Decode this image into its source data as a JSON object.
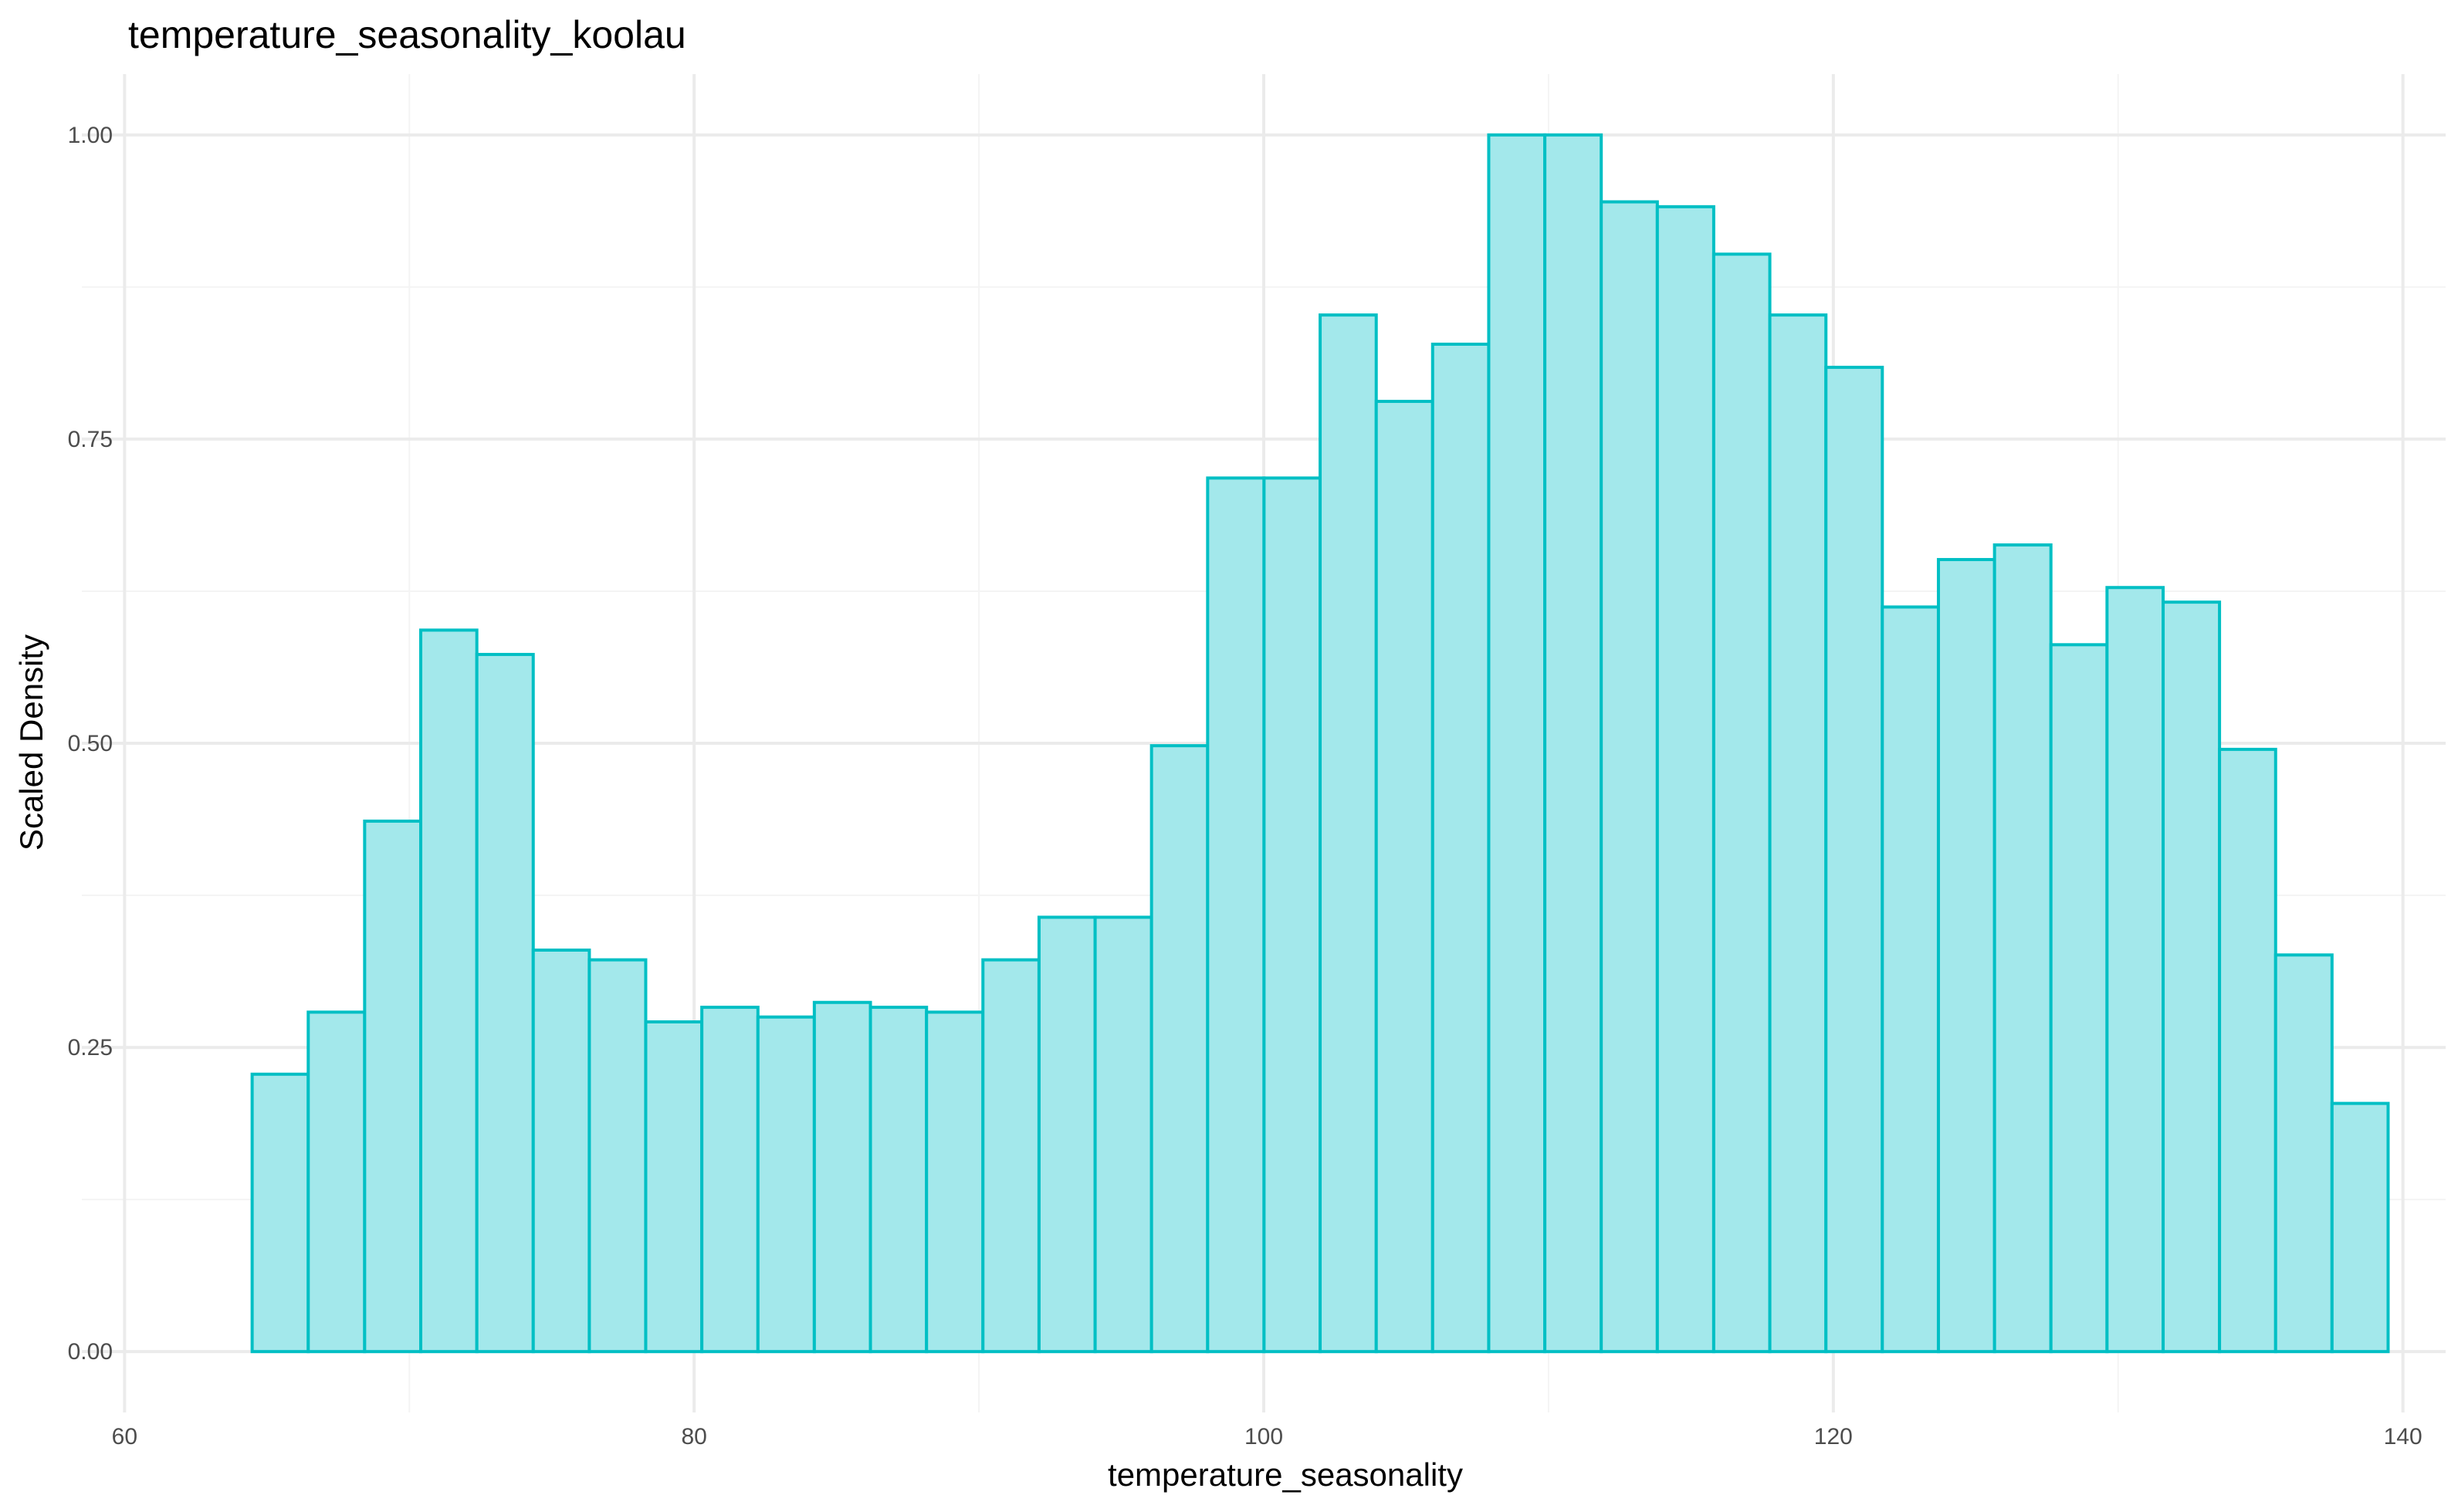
{
  "chart_data": {
    "type": "bar",
    "title": "temperature_seasonality_koolau",
    "xlabel": "temperature_seasonality",
    "ylabel": "Scaled Density",
    "xlim": [
      58.5,
      141.5
    ],
    "ylim": [
      -0.05,
      1.05
    ],
    "x_ticks": [
      60,
      80,
      100,
      120,
      140
    ],
    "y_ticks": [
      0.0,
      0.25,
      0.5,
      0.75,
      1.0
    ],
    "x_tick_labels": [
      "60",
      "80",
      "100",
      "120",
      "140"
    ],
    "y_tick_labels": [
      "0.00",
      "0.25",
      "0.50",
      "0.75",
      "1.00"
    ],
    "grid": true,
    "colors": {
      "fill": "#a3e8eb",
      "outline": "#00bfc4"
    },
    "bin_width": 1.974,
    "bins": [
      {
        "x0": 64.48,
        "x1": 66.45,
        "y": 0.228
      },
      {
        "x0": 66.45,
        "x1": 68.43,
        "y": 0.279
      },
      {
        "x0": 68.43,
        "x1": 70.4,
        "y": 0.436
      },
      {
        "x0": 70.4,
        "x1": 72.37,
        "y": 0.593
      },
      {
        "x0": 72.37,
        "x1": 74.35,
        "y": 0.573
      },
      {
        "x0": 74.35,
        "x1": 76.32,
        "y": 0.33
      },
      {
        "x0": 76.32,
        "x1": 78.3,
        "y": 0.322
      },
      {
        "x0": 78.3,
        "x1": 80.27,
        "y": 0.271
      },
      {
        "x0": 80.27,
        "x1": 82.24,
        "y": 0.283
      },
      {
        "x0": 82.24,
        "x1": 84.22,
        "y": 0.275
      },
      {
        "x0": 84.22,
        "x1": 86.19,
        "y": 0.287
      },
      {
        "x0": 86.19,
        "x1": 88.16,
        "y": 0.283
      },
      {
        "x0": 88.16,
        "x1": 90.14,
        "y": 0.279
      },
      {
        "x0": 90.14,
        "x1": 92.11,
        "y": 0.322
      },
      {
        "x0": 92.11,
        "x1": 94.08,
        "y": 0.357
      },
      {
        "x0": 94.08,
        "x1": 96.06,
        "y": 0.357
      },
      {
        "x0": 96.06,
        "x1": 98.03,
        "y": 0.498
      },
      {
        "x0": 98.03,
        "x1": 100.01,
        "y": 0.718
      },
      {
        "x0": 100.01,
        "x1": 101.98,
        "y": 0.718
      },
      {
        "x0": 101.98,
        "x1": 103.95,
        "y": 0.852
      },
      {
        "x0": 103.95,
        "x1": 105.93,
        "y": 0.781
      },
      {
        "x0": 105.93,
        "x1": 107.9,
        "y": 0.828
      },
      {
        "x0": 107.9,
        "x1": 109.87,
        "y": 1.0
      },
      {
        "x0": 109.87,
        "x1": 111.85,
        "y": 1.0
      },
      {
        "x0": 111.85,
        "x1": 113.82,
        "y": 0.945
      },
      {
        "x0": 113.82,
        "x1": 115.8,
        "y": 0.941
      },
      {
        "x0": 115.8,
        "x1": 117.77,
        "y": 0.902
      },
      {
        "x0": 117.77,
        "x1": 119.74,
        "y": 0.852
      },
      {
        "x0": 119.74,
        "x1": 121.72,
        "y": 0.809
      },
      {
        "x0": 121.72,
        "x1": 123.69,
        "y": 0.612
      },
      {
        "x0": 123.69,
        "x1": 125.66,
        "y": 0.651
      },
      {
        "x0": 125.66,
        "x1": 127.64,
        "y": 0.663
      },
      {
        "x0": 127.64,
        "x1": 129.61,
        "y": 0.581
      },
      {
        "x0": 129.61,
        "x1": 131.58,
        "y": 0.628
      },
      {
        "x0": 131.58,
        "x1": 133.56,
        "y": 0.616
      },
      {
        "x0": 133.56,
        "x1": 135.53,
        "y": 0.495
      },
      {
        "x0": 135.53,
        "x1": 137.51,
        "y": 0.326
      },
      {
        "x0": 137.51,
        "x1": 139.48,
        "y": 0.204
      }
    ]
  }
}
